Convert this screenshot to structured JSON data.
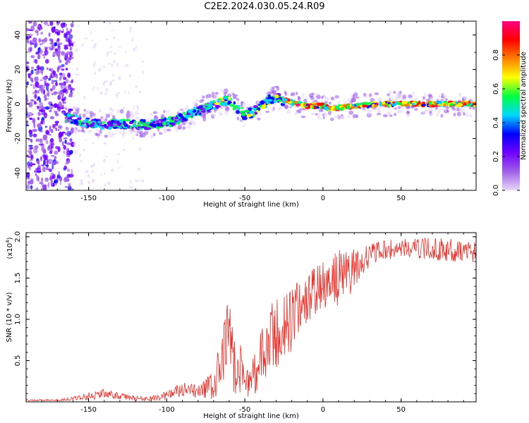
{
  "page_title": "C2E2.2024.030.05.24.R09",
  "chart_data": [
    {
      "type": "heatmap",
      "title": "C2E2.2024.030.05.24.R09",
      "xlabel": "Height of straight line (km)",
      "ylabel": "Frequency (Hz)",
      "xlim": [
        -190,
        98
      ],
      "ylim": [
        -50,
        48
      ],
      "xticks": [
        -150,
        -100,
        -50,
        0,
        50
      ],
      "xtick_labels": [
        "-150",
        "-100",
        "-50",
        "0",
        "50"
      ],
      "yticks": [
        -40,
        -20,
        0,
        20,
        40
      ],
      "ytick_labels": [
        "-40",
        "-20",
        "0",
        "20",
        "40"
      ],
      "ridge": {
        "x": [
          -163,
          -150,
          -140,
          -130,
          -120,
          -110,
          -100,
          -90,
          -80,
          -70,
          -65,
          -60,
          -55,
          -50,
          -45,
          -40,
          -35,
          -30,
          -25,
          -20,
          -15,
          -10,
          -5,
          0,
          5,
          10,
          20,
          40,
          60,
          80,
          97
        ],
        "frequency": [
          -8,
          -11,
          -12,
          -11,
          -12,
          -12,
          -11,
          -8,
          -4,
          -1,
          1,
          2,
          -2,
          -6,
          -5,
          -2,
          2,
          4,
          2,
          1,
          0,
          -1,
          -1,
          -1,
          -3,
          -2,
          -1,
          0,
          0,
          0,
          0
        ]
      },
      "colorbar": {
        "label": "Normalized spectral amplitude",
        "range": [
          0,
          1
        ],
        "ticks": [
          0.0,
          0.2,
          0.4,
          0.6,
          0.8
        ],
        "tick_labels": [
          "0.0",
          "0.2",
          "0.4",
          "0.6",
          "0.8"
        ],
        "colors": [
          "#e8d8f8",
          "#a060e8",
          "#7000ff",
          "#0000ff",
          "#00d8ff",
          "#00ff40",
          "#ffff00",
          "#ff8000",
          "#ff0000",
          "#ff0080"
        ]
      }
    },
    {
      "type": "line",
      "xlabel": "Height of straight line (km)",
      "ylabel": "SNR (10 * v/v)",
      "ylabel_scale": "(x10",
      "ylabel_scale_exp": "4",
      "ylabel_scale_close": ")",
      "xlim": [
        -190,
        98
      ],
      "ylim": [
        0,
        2.05
      ],
      "xticks": [
        -150,
        -100,
        -50,
        0,
        50
      ],
      "xtick_labels": [
        "-150",
        "-100",
        "-50",
        "0",
        "50"
      ],
      "yticks": [
        0.5,
        1.0,
        1.5,
        2.0
      ],
      "ytick_labels": [
        "0.5",
        "1.0",
        "1.5",
        "2.0"
      ],
      "series": [
        {
          "name": "SNR",
          "color": "#e8302a",
          "x": [
            -190,
            -170,
            -160,
            -150,
            -140,
            -130,
            -120,
            -110,
            -100,
            -90,
            -80,
            -75,
            -70,
            -65,
            -62,
            -60,
            -58,
            -55,
            -52,
            -50,
            -47,
            -45,
            -40,
            -35,
            -30,
            -25,
            -20,
            -15,
            -10,
            -5,
            0,
            5,
            10,
            15,
            20,
            25,
            30,
            35,
            40,
            50,
            60,
            70,
            80,
            90,
            98
          ],
          "mean": [
            0.02,
            0.02,
            0.04,
            0.07,
            0.1,
            0.07,
            0.04,
            0.04,
            0.08,
            0.14,
            0.12,
            0.16,
            0.2,
            0.4,
            0.7,
            0.95,
            0.55,
            0.35,
            0.4,
            0.3,
            0.25,
            0.3,
            0.5,
            0.65,
            0.8,
            0.9,
            1.0,
            1.15,
            1.25,
            1.35,
            1.4,
            1.45,
            1.5,
            1.55,
            1.6,
            1.7,
            1.78,
            1.82,
            1.84,
            1.86,
            1.86,
            1.85,
            1.84,
            1.83,
            1.82
          ],
          "spread": [
            0.01,
            0.01,
            0.02,
            0.05,
            0.06,
            0.04,
            0.03,
            0.03,
            0.06,
            0.1,
            0.08,
            0.12,
            0.2,
            0.4,
            0.45,
            0.45,
            0.4,
            0.3,
            0.3,
            0.25,
            0.2,
            0.25,
            0.35,
            0.45,
            0.5,
            0.45,
            0.4,
            0.35,
            0.3,
            0.3,
            0.3,
            0.3,
            0.35,
            0.3,
            0.25,
            0.18,
            0.14,
            0.12,
            0.12,
            0.12,
            0.12,
            0.14,
            0.14,
            0.14,
            0.14
          ]
        }
      ]
    }
  ]
}
